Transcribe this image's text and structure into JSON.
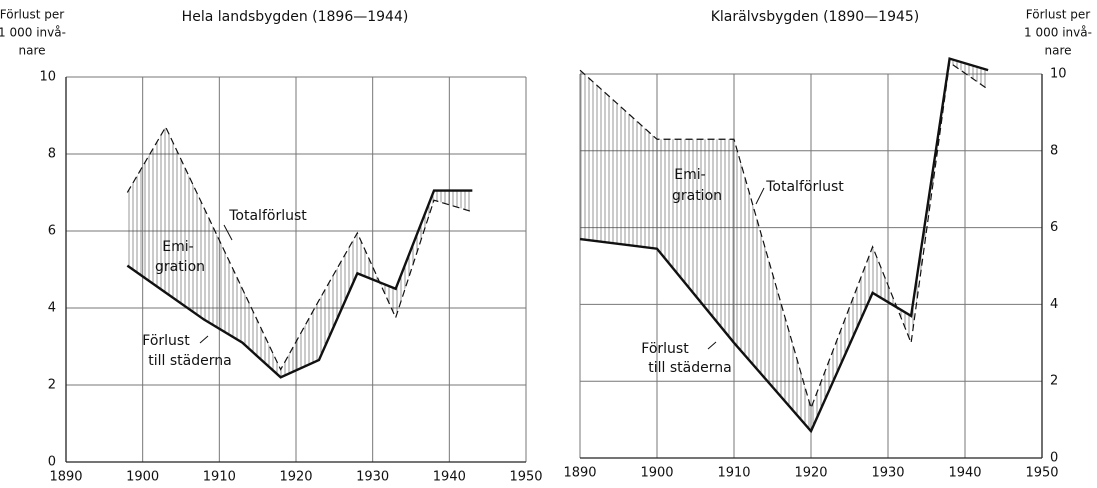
{
  "chart_data": [
    {
      "type": "line",
      "title": "Hela landsbygden (1896—1944)",
      "y_label": [
        "Förlust per",
        "1 000 invå-",
        "nare"
      ],
      "x": [
        1898,
        1903,
        1908,
        1913,
        1918,
        1923,
        1928,
        1933,
        1938,
        1943
      ],
      "series": [
        {
          "color": "#111111",
          "style": "dashed",
          "values": [
            7.0,
            8.7,
            6.6,
            4.5,
            2.4,
            4.2,
            5.95,
            3.75,
            6.8,
            6.5
          ]
        },
        {
          "color": "#111111",
          "style": "solid",
          "values": [
            5.1,
            4.4,
            3.7,
            3.1,
            2.2,
            2.65,
            4.9,
            4.5,
            7.05,
            7.05
          ]
        }
      ],
      "annotations": [
        "Emi-",
        "gration",
        "Totalförlust",
        "Förlust",
        "till städerna"
      ],
      "xlim": [
        1890,
        1950
      ],
      "xticks": [
        1890,
        1900,
        1910,
        1920,
        1930,
        1940,
        1950
      ],
      "ylim": [
        0,
        10
      ],
      "yticks": [
        0,
        2,
        4,
        6,
        8,
        10
      ],
      "grid": true,
      "fill_between": true,
      "y_axis_side": "left"
    },
    {
      "type": "line",
      "title": "Klarälvsbygden (1890—1945)",
      "y_label": [
        "Förlust per",
        "1 000 invå-",
        "nare"
      ],
      "x": [
        1890,
        1900,
        1910,
        1920,
        1928,
        1933,
        1938,
        1943
      ],
      "series": [
        {
          "color": "#111111",
          "style": "dashed",
          "values": [
            10.1,
            8.3,
            8.3,
            1.3,
            5.5,
            3.0,
            10.3,
            9.6
          ]
        },
        {
          "color": "#111111",
          "style": "solid",
          "values": [
            5.7,
            5.45,
            3.0,
            0.7,
            4.3,
            3.7,
            10.4,
            10.1
          ]
        }
      ],
      "annotations": [
        "Emi-",
        "gration",
        "Totalförlust",
        "Förlust",
        "till städerna"
      ],
      "xlim": [
        1890,
        1950
      ],
      "xticks": [
        1890,
        1900,
        1910,
        1920,
        1930,
        1940,
        1950
      ],
      "ylim": [
        0,
        10
      ],
      "yticks": [
        0,
        2,
        4,
        6,
        8,
        10
      ],
      "grid": true,
      "fill_between": true,
      "y_axis_side": "right"
    }
  ]
}
